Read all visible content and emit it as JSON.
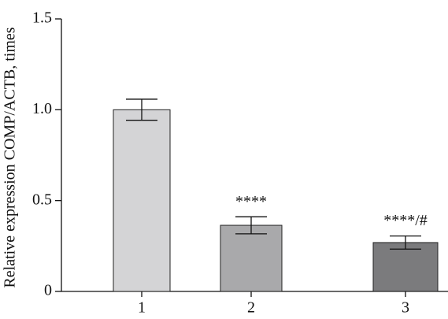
{
  "chart_data": {
    "type": "bar",
    "ylabel": "Relative expression COMP/ACTB, times",
    "categories": [
      "1",
      "2",
      "3"
    ],
    "series": [
      {
        "values": [
          1.0,
          0.364,
          0.269
        ],
        "errors": [
          0.058,
          0.047,
          0.036
        ],
        "colors": [
          "#d4d4d6",
          "#a9a9ab",
          "#7b7b7d"
        ]
      }
    ],
    "annotations": [
      null,
      "****",
      "****/#"
    ],
    "ylim": [
      0,
      1.5
    ],
    "yticks": [
      0,
      0.5,
      {
        "value": 1,
        "label": "1.0"
      },
      1.5
    ]
  }
}
